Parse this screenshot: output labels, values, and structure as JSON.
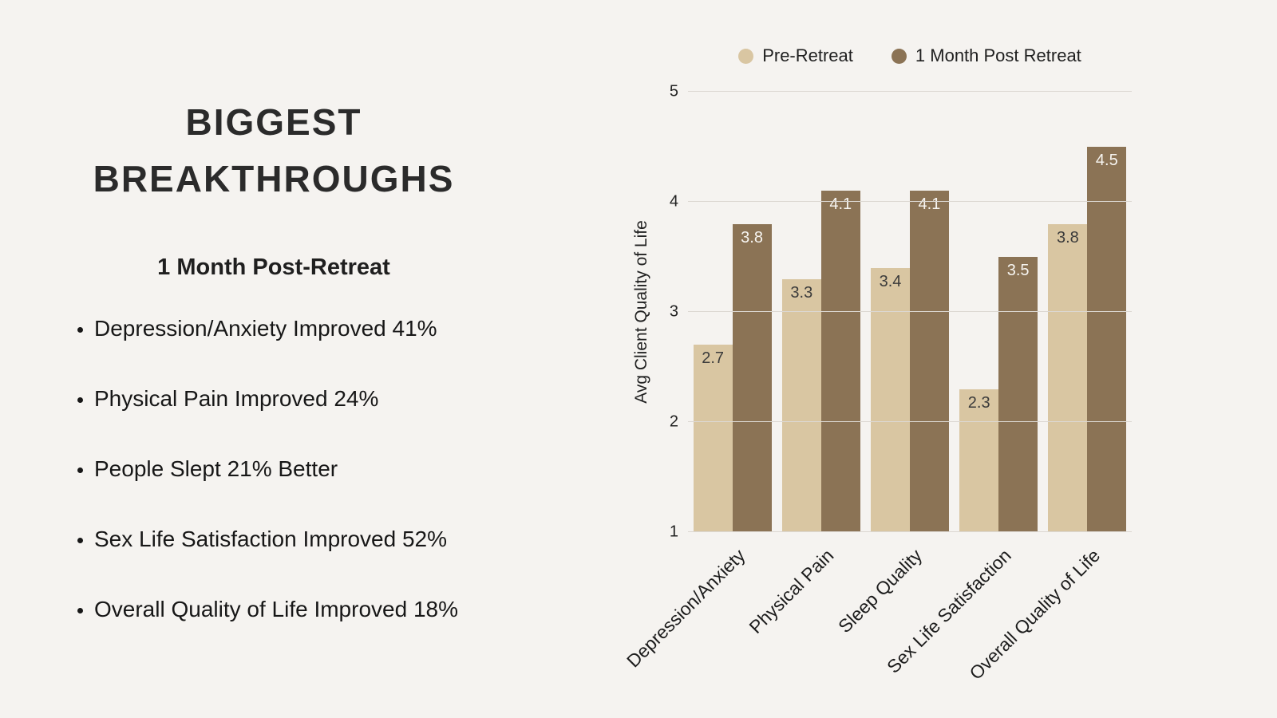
{
  "page": {
    "background": "#f5f3f0"
  },
  "left_panel": {
    "title_line1": "BIGGEST",
    "title_line2": "BREAKTHROUGHS",
    "subtitle": "1 Month Post-Retreat",
    "bullets": [
      "Depression/Anxiety Improved 41%",
      "Physical Pain Improved 24%",
      "People Slept 21% Better",
      "Sex Life Satisfaction Improved 52%",
      "Overall Quality of Life Improved 18%"
    ]
  },
  "chart_data": {
    "type": "bar",
    "title": "",
    "xlabel": "",
    "ylabel": "Avg Client Quality of Life",
    "ylim": [
      1,
      5
    ],
    "yticks": [
      1,
      2,
      3,
      4,
      5
    ],
    "grid": true,
    "legend_position": "top",
    "categories": [
      "Depression/Anxiety",
      "Physical Pain",
      "Sleep Quality",
      "Sex Life Satisfaction",
      "Overall Quality of Life"
    ],
    "series": [
      {
        "name": "Pre-Retreat",
        "color": "#d9c6a2",
        "label_color": "#3b3b3b",
        "values": [
          2.7,
          3.3,
          3.4,
          2.3,
          3.8
        ]
      },
      {
        "name": "1 Month Post Retreat",
        "color": "#8b7355",
        "label_color": "#f7f5f1",
        "values": [
          3.8,
          4.1,
          4.1,
          3.5,
          4.5
        ]
      }
    ]
  }
}
